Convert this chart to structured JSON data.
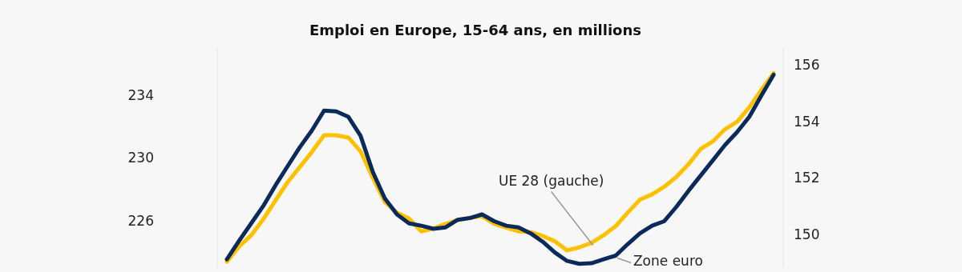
{
  "chart_data": {
    "type": "line",
    "title": "Emploi en Europe, 15-64 ans, en millions",
    "categories": [
      null,
      null,
      null,
      null,
      null,
      null,
      null,
      null,
      null,
      null,
      null,
      null,
      null,
      null,
      null,
      null,
      null,
      null,
      null,
      null,
      null,
      null,
      null,
      null,
      null,
      null,
      null,
      null,
      null,
      null,
      null,
      null,
      null,
      null,
      null,
      null,
      null,
      null,
      null,
      null,
      null,
      null,
      null,
      null,
      null,
      null
    ],
    "series": [
      {
        "name": "UE 28 (gauche)",
        "color": "#ffc000",
        "values": [
          223.4,
          224.36,
          225.08,
          226.1,
          227.3,
          228.46,
          229.42,
          230.39,
          231.45,
          231.45,
          231.3,
          230.43,
          228.75,
          227.2,
          226.53,
          226.14,
          225.33,
          225.52,
          225.81,
          226.05,
          226.19,
          226.29,
          225.81,
          225.57,
          225.33,
          225.28,
          225.04,
          224.7,
          224.12,
          224.31,
          224.6,
          225.08,
          225.66,
          226.53,
          227.35,
          227.69,
          228.17,
          228.8,
          229.61,
          230.58,
          231.06,
          231.83,
          232.31,
          233.23,
          234.34,
          235.4
        ]
      },
      {
        "name": "Zone euro",
        "color": "#0b2a5c",
        "axis": "y2",
        "values": [
          149.11,
          149.76,
          150.38,
          151.0,
          151.73,
          152.41,
          153.08,
          153.68,
          154.38,
          154.35,
          154.16,
          153.49,
          152.22,
          151.27,
          150.7,
          150.38,
          150.3,
          150.19,
          150.24,
          150.51,
          150.57,
          150.7,
          150.46,
          150.3,
          150.24,
          150.03,
          149.73,
          149.35,
          149.05,
          148.95,
          148.97,
          149.11,
          149.24,
          149.65,
          150.03,
          150.3,
          150.46,
          150.97,
          151.54,
          152.08,
          152.62,
          153.16,
          153.62,
          154.16,
          154.92,
          155.65
        ]
      }
    ],
    "ylim": [
      223,
      237
    ],
    "yticks": [
      226,
      230,
      234
    ],
    "y2lim": [
      148.8,
      156.6
    ],
    "y2ticks": [
      150,
      152,
      154,
      156
    ],
    "grid": false,
    "legend": false
  }
}
